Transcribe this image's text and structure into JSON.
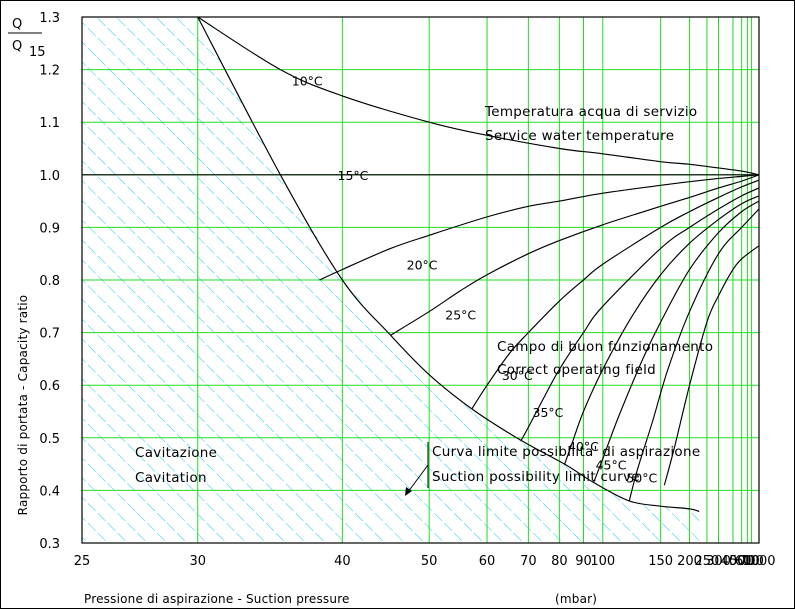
{
  "chart_data": {
    "type": "line",
    "title": "",
    "xlabel": "Pressione di aspirazione - Suction pressure",
    "xunit": "(mbar)",
    "ylabel": "Rapporto di portata - Capacity ratio",
    "ylabel_fraction": {
      "numerator": "Q",
      "denominator": "Q",
      "denominator_sub": "15"
    },
    "xscale": "reciprocal",
    "xlim": [
      25,
      1000
    ],
    "ylim": [
      0.3,
      1.3
    ],
    "grid": true,
    "x_ticks": [
      25,
      30,
      40,
      50,
      60,
      70,
      80,
      90,
      100,
      150,
      200,
      250,
      300,
      400,
      500,
      600,
      700,
      1000
    ],
    "x_tick_labels": [
      "25",
      "30",
      "40",
      "50",
      "60",
      "70",
      "80",
      "90",
      "100",
      "150",
      "200",
      "250",
      "300",
      "400",
      "500",
      "600",
      "700",
      "1000"
    ],
    "y_ticks": [
      0.3,
      0.4,
      0.5,
      0.6,
      0.7,
      0.8,
      0.9,
      1.0,
      1.1,
      1.2,
      1.3
    ],
    "y_tick_labels": [
      "0.3",
      "0.4",
      "0.5",
      "0.6",
      "0.7",
      "0.8",
      "0.9",
      "1.0",
      "1.1",
      "1.2",
      "1.3"
    ],
    "colors": {
      "grid": "#22dd22",
      "cavitation_hatch": "#00c8e8",
      "curves": "#000000"
    },
    "series": [
      {
        "name": "10°C",
        "x": [
          30,
          35,
          40,
          50,
          60,
          80,
          100,
          150,
          200,
          300,
          500,
          1000
        ],
        "y": [
          1.3,
          1.2,
          1.15,
          1.1,
          1.075,
          1.05,
          1.04,
          1.025,
          1.02,
          1.013,
          1.007,
          1.0
        ]
      },
      {
        "name": "15°C",
        "x": [
          25,
          30,
          40,
          50,
          60,
          80,
          100,
          150,
          200,
          300,
          500,
          1000
        ],
        "y": [
          1.0,
          1.0,
          1.0,
          1.0,
          1.0,
          1.0,
          1.0,
          1.0,
          1.0,
          1.0,
          1.0,
          1.0
        ]
      },
      {
        "name": "20°C",
        "x": [
          38,
          40,
          45,
          50,
          60,
          70,
          80,
          100,
          150,
          200,
          300,
          500,
          1000
        ],
        "y": [
          0.8,
          0.82,
          0.86,
          0.885,
          0.92,
          0.94,
          0.95,
          0.965,
          0.98,
          0.987,
          0.993,
          0.997,
          1.0
        ]
      },
      {
        "name": "25°C",
        "x": [
          45,
          50,
          55,
          60,
          70,
          80,
          100,
          150,
          200,
          300,
          500,
          1000
        ],
        "y": [
          0.695,
          0.74,
          0.78,
          0.81,
          0.85,
          0.875,
          0.905,
          0.94,
          0.957,
          0.975,
          0.988,
          1.0
        ]
      },
      {
        "name": "30°C",
        "x": [
          57,
          60,
          65,
          70,
          80,
          90,
          100,
          150,
          200,
          300,
          500,
          1000
        ],
        "y": [
          0.555,
          0.6,
          0.66,
          0.7,
          0.76,
          0.8,
          0.83,
          0.9,
          0.93,
          0.957,
          0.977,
          0.99
        ]
      },
      {
        "name": "35°C",
        "x": [
          68,
          70,
          75,
          80,
          90,
          100,
          150,
          200,
          300,
          500,
          1000
        ],
        "y": [
          0.495,
          0.52,
          0.58,
          0.63,
          0.7,
          0.75,
          0.86,
          0.9,
          0.935,
          0.96,
          0.975
        ]
      },
      {
        "name": "40°C",
        "x": [
          82,
          85,
          90,
          100,
          120,
          150,
          200,
          300,
          500,
          1000
        ],
        "y": [
          0.45,
          0.49,
          0.55,
          0.63,
          0.73,
          0.81,
          0.87,
          0.915,
          0.945,
          0.96
        ]
      },
      {
        "name": "45°C",
        "x": [
          95,
          100,
          110,
          130,
          150,
          200,
          300,
          500,
          1000
        ],
        "y": [
          0.415,
          0.46,
          0.54,
          0.65,
          0.72,
          0.82,
          0.89,
          0.93,
          0.95
        ]
      },
      {
        "name": "50°C",
        "x": [
          118,
          125,
          140,
          160,
          200,
          300,
          500,
          1000
        ],
        "y": [
          0.38,
          0.44,
          0.53,
          0.63,
          0.74,
          0.85,
          0.9,
          0.935
        ]
      },
      {
        "name": "",
        "x": [
          155,
          170,
          200,
          250,
          300,
          400,
          500,
          700,
          1000
        ],
        "y": [
          0.41,
          0.48,
          0.6,
          0.72,
          0.77,
          0.82,
          0.84,
          0.855,
          0.865
        ]
      },
      {
        "name": "Curva limite",
        "x": [
          30,
          35,
          40,
          45,
          50,
          57,
          68,
          82,
          95,
          118,
          150,
          200,
          225
        ],
        "y": [
          1.3,
          1.0,
          0.8,
          0.695,
          0.62,
          0.555,
          0.495,
          0.45,
          0.415,
          0.38,
          0.37,
          0.365,
          0.36
        ]
      }
    ],
    "cavitation_boundary": {
      "x": [
        25,
        30,
        35,
        40,
        45,
        50,
        57,
        68,
        82,
        95,
        118,
        150,
        200,
        225,
        225,
        25
      ],
      "y": [
        1.3,
        1.3,
        1.0,
        0.8,
        0.695,
        0.62,
        0.555,
        0.495,
        0.45,
        0.415,
        0.38,
        0.37,
        0.365,
        0.36,
        0.3,
        0.3
      ]
    },
    "annotations": {
      "service_temp_it": "Temperatura acqua di servizio",
      "service_temp_en": "Service water temperature",
      "operating_it": "Campo di buon funzionamento",
      "operating_en": "Correct operating field",
      "cavitation_it": "Cavitazione",
      "cavitation_en": "Cavitation",
      "limit_it": "Curva limite possibilita' di aspirazione",
      "limit_en": "Suction possibility limit curve"
    },
    "curve_labels": [
      "10°C",
      "15°C",
      "20°C",
      "25°C",
      "30°C",
      "35°C",
      "40°C",
      "45°C",
      "50°C"
    ]
  }
}
